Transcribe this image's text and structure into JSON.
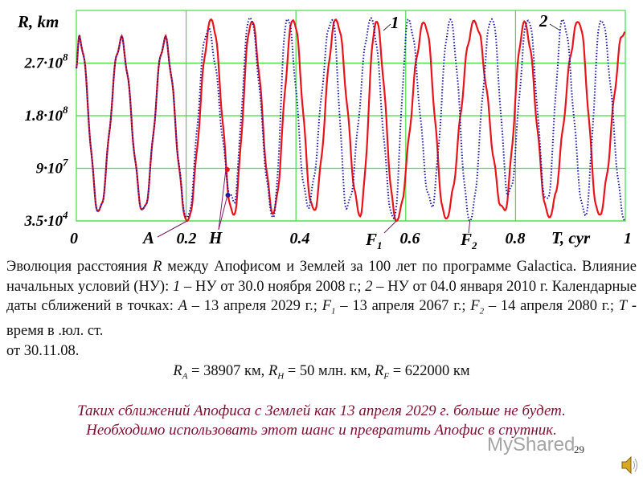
{
  "chart_data": {
    "type": "line",
    "ylabel": "R, km",
    "xlabel": "T, cyr",
    "xlim": [
      0,
      1
    ],
    "ylim": [
      0,
      365000000.0
    ],
    "grid": true,
    "x_ticks": [
      {
        "v": 0,
        "label": "0"
      },
      {
        "v": 0.2,
        "label": "0.2"
      },
      {
        "v": 0.4,
        "label": "0.4"
      },
      {
        "v": 0.6,
        "label": "0.6"
      },
      {
        "v": 0.8,
        "label": "0.8"
      },
      {
        "v": 1,
        "label": "1"
      }
    ],
    "y_ticks": [
      {
        "v": 35000.0,
        "mant": "3.5·10",
        "exp": "4"
      },
      {
        "v": 90000000.0,
        "mant": "9·10",
        "exp": "7"
      },
      {
        "v": 180000000.0,
        "mant": "1.8·10",
        "exp": "8"
      },
      {
        "v": 270000000.0,
        "mant": "2.7·10",
        "exp": "8"
      }
    ],
    "colors": {
      "grid": "#44dd44",
      "series1": "#e8141c",
      "series2": "#1a1aa8"
    },
    "series": [
      {
        "name": "1",
        "style": "solid",
        "points": [
          [
            0,
            261000000.0
          ],
          [
            0.006,
            313000000.0
          ],
          [
            0.041,
            16000000.0
          ],
          [
            0.081,
            309000000.0
          ],
          [
            0.122,
            18000000.0
          ],
          [
            0.161,
            309000000.0
          ],
          [
            0.202,
            35000.0
          ],
          [
            0.246,
            344000000.0
          ],
          [
            0.286,
            10000000.0
          ],
          [
            0.319,
            341000000.0
          ],
          [
            0.359,
            14000000.0
          ],
          [
            0.395,
            344000000.0
          ],
          [
            0.432,
            18000000.0
          ],
          [
            0.473,
            344000000.0
          ],
          [
            0.517,
            10000000.0
          ],
          [
            0.546,
            341000000.0
          ],
          [
            0.583,
            35000.0
          ],
          [
            0.634,
            339000000.0
          ],
          [
            0.673,
            4000000.0
          ],
          [
            0.725,
            341000000.0
          ],
          [
            0.779,
            18000000.0
          ],
          [
            0.816,
            339000000.0
          ],
          [
            0.861,
            7000000.0
          ],
          [
            0.915,
            341000000.0
          ],
          [
            0.952,
            10000000.0
          ],
          [
            0.999,
            326000000.0
          ]
        ]
      },
      {
        "name": "2",
        "style": "dotted",
        "points": [
          [
            0,
            261000000.0
          ],
          [
            0.006,
            313000000.0
          ],
          [
            0.041,
            16000000.0
          ],
          [
            0.081,
            309000000.0
          ],
          [
            0.122,
            18000000.0
          ],
          [
            0.161,
            309000000.0
          ],
          [
            0.202,
            5000000.0
          ],
          [
            0.239,
            327000000.0
          ],
          [
            0.286,
            32000000.0
          ],
          [
            0.316,
            348000000.0
          ],
          [
            0.359,
            7000000.0
          ],
          [
            0.384,
            346000000.0
          ],
          [
            0.422,
            27000000.0
          ],
          [
            0.466,
            344000000.0
          ],
          [
            0.493,
            23000000.0
          ],
          [
            0.537,
            346000000.0
          ],
          [
            0.578,
            4000000.0
          ],
          [
            0.605,
            344000000.0
          ],
          [
            0.647,
            27000000.0
          ],
          [
            0.681,
            344000000.0
          ],
          [
            0.717,
            35000.0
          ],
          [
            0.757,
            346000000.0
          ],
          [
            0.788,
            44000000.0
          ],
          [
            0.823,
            344000000.0
          ],
          [
            0.857,
            32000000.0
          ],
          [
            0.886,
            344000000.0
          ],
          [
            0.927,
            10000000.0
          ],
          [
            0.956,
            344000000.0
          ],
          [
            1.0,
            35000.0
          ]
        ]
      }
    ],
    "annotations": [
      {
        "label": "A",
        "at": [
          0.202,
          35000.0
        ]
      },
      {
        "label": "H",
        "at": [
          0.275,
          88000000.0
        ]
      },
      {
        "label": "F",
        "sub": "1",
        "at": [
          0.583,
          35000.0
        ]
      },
      {
        "label": "F",
        "sub": "2",
        "at": [
          0.717,
          35000.0
        ]
      },
      {
        "label": "1",
        "series": "1"
      },
      {
        "label": "2",
        "series": "2"
      }
    ],
    "h_points": [
      [
        0.275,
        88000000.0
      ],
      [
        0.276,
        44000000.0
      ]
    ]
  },
  "caption": {
    "p1": "Эволюция расстояния ",
    "R": "R",
    "p2": " между Апофисом и Землей за 100 лет по программе Galactica. Влияние начальных условий (НУ): ",
    "n1": "1",
    "p3": " – НУ от 30.0 ноября 2008 г.; ",
    "n2": "2",
    "p4": " – НУ от 04.0 января 2010 г. Календарные даты сближений в точках: ",
    "A": "A",
    "p5": " – 13 апреля 2029 г.; ",
    "F1": "F",
    "F1sub": "1",
    "p6": " – 13 апреля 2067 г.; ",
    "F2": "F",
    "F2sub": "2",
    "p7": " – 14 апреля 2080 г.; ",
    "T": "T",
    "p8": " - время в .юл. ст.",
    "p9": "от 30.11.08."
  },
  "formula": {
    "RA": "R",
    "RAsub": "A",
    "RAval": " = 38907 км, ",
    "RH": "R",
    "RHsub": "H",
    "RHval": " = 50 млн. км, ",
    "RF": "R",
    "RFsub": "F",
    "RFval": " = 622000 км"
  },
  "conclusion": {
    "line1": "Таких сближений Апофиса с Землей как 13 апреля 2029 г. больше не будет.",
    "line2": "Необходимо использовать этот шанс и превратить Апофис в спутник."
  },
  "page_number": "29",
  "watermark": "MyShared",
  "speaker_icon": "speaker-icon"
}
